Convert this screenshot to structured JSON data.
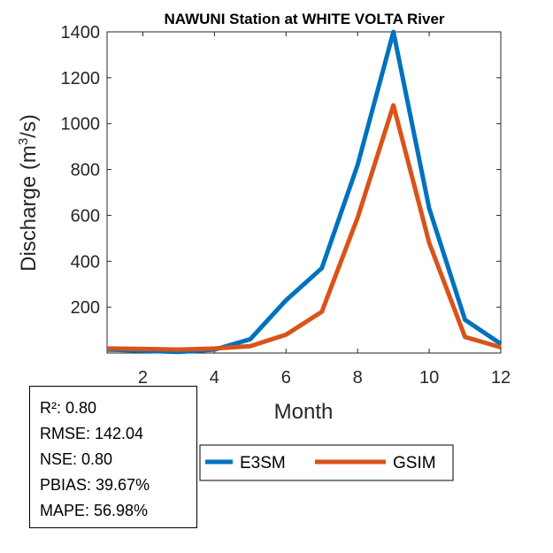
{
  "chart_data": {
    "type": "line",
    "title": "NAWUNI  Station at  WHITE VOLTA  River",
    "xlabel": "Month",
    "ylabel_main": "Discharge (m",
    "ylabel_sup": "3",
    "ylabel_tail": "/s)",
    "xlim": [
      1,
      12
    ],
    "ylim": [
      0,
      1400
    ],
    "xticks": [
      2,
      4,
      6,
      8,
      10,
      12
    ],
    "yticks": [
      200,
      400,
      600,
      800,
      1000,
      1200,
      1400
    ],
    "x": [
      1,
      2,
      3,
      4,
      5,
      6,
      7,
      8,
      9,
      10,
      11,
      12
    ],
    "series": [
      {
        "name": "E3SM",
        "color": "#0072BD",
        "values": [
          15,
          10,
          5,
          15,
          60,
          230,
          370,
          820,
          1400,
          630,
          145,
          40
        ]
      },
      {
        "name": "GSIM",
        "color": "#D95319",
        "values": [
          20,
          18,
          15,
          20,
          30,
          80,
          180,
          590,
          1080,
          480,
          70,
          25
        ]
      }
    ],
    "legend_position": "bottom",
    "grid": false
  },
  "stats": {
    "r2": "R²: 0.80",
    "rmse": "RMSE: 142.04",
    "nse": "NSE: 0.80",
    "pbias": "PBIAS: 39.67%",
    "mape": "MAPE: 56.98%"
  }
}
